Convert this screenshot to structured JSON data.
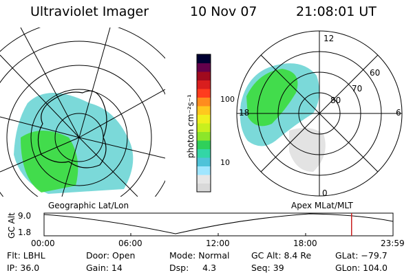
{
  "header": {
    "instrument": "Ultraviolet Imager",
    "date": "10 Nov 07",
    "time": "21:08:01 UT"
  },
  "left_panel": {
    "label": "Geographic Lat/Lon"
  },
  "right_panel": {
    "label": "Apex  MLat/MLT",
    "mlt_labels": [
      "12",
      "18",
      "6",
      "0"
    ],
    "mlat_labels": [
      "60",
      "70",
      "80"
    ]
  },
  "colorbar": {
    "unit_label": "photon cm⁻²s⁻¹",
    "ticks": [
      "100",
      "10"
    ],
    "scale": "log",
    "colors": [
      "#d9d9d9",
      "#e6e6e6",
      "#a0e6ff",
      "#4fc3d9",
      "#33d6a6",
      "#2fd05a",
      "#8ce62a",
      "#c8f01e",
      "#f0f01e",
      "#ffc81e",
      "#ff8c1e",
      "#ff3c1e",
      "#d91e1e",
      "#a00a1e",
      "#64004b",
      "#000032"
    ]
  },
  "altitude_plot": {
    "y_label": "GC Alt",
    "y_ticks": [
      "9.0",
      "1.8"
    ],
    "x_ticks": [
      "00:00",
      "06:00",
      "12:00",
      "18:00",
      "23:59"
    ],
    "marker_time": "21:08"
  },
  "info": {
    "filter": "Flt: LBHL",
    "ip": "IP: 36.0",
    "door": "Door: Open",
    "gain": "Gain: 14",
    "mode": "Mode: Normal",
    "dsp": "Dsp:     4.3",
    "gc_alt": "GC Alt: 8.4 Re",
    "seq": "Seq: 39",
    "glat": "GLat: −79.7",
    "glon": "GLon: 104.0"
  },
  "colors": {
    "marker": "#c81e1e"
  }
}
